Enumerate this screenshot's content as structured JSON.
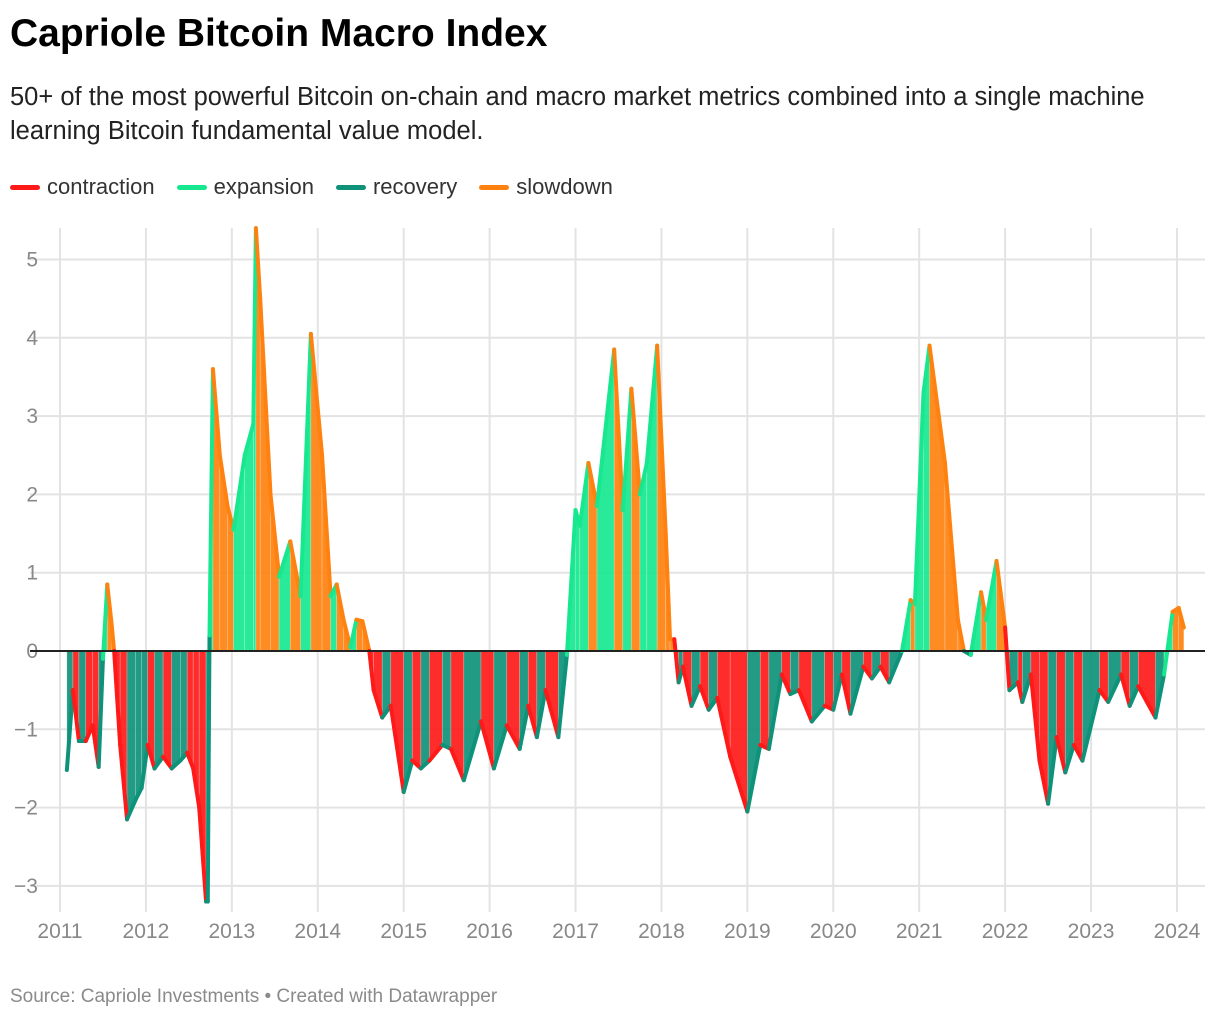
{
  "header": {
    "title": "Capriole Bitcoin Macro Index",
    "subtitle": "50+ of the most powerful Bitcoin on-chain and macro market metrics combined into a single machine learning Bitcoin fundamental value model."
  },
  "footer": {
    "source": "Source: Capriole Investments • Created with Datawrapper"
  },
  "chart_data": {
    "type": "area",
    "title": "Capriole Bitcoin Macro Index",
    "xlabel": "",
    "ylabel": "",
    "xlim": [
      2011,
      2024.3
    ],
    "ylim": [
      -3.25,
      5.4
    ],
    "grid": true,
    "legend_placement": "top-left",
    "x_ticks": [
      "2011",
      "2012",
      "2013",
      "2014",
      "2015",
      "2016",
      "2017",
      "2018",
      "2019",
      "2020",
      "2021",
      "2022",
      "2023",
      "2024"
    ],
    "y_ticks": [
      "−3",
      "−2",
      "−1",
      "0",
      "1",
      "2",
      "3",
      "4",
      "5"
    ],
    "regimes": [
      {
        "key": "c",
        "name": "contraction",
        "color": "#ff1a1a"
      },
      {
        "key": "e",
        "name": "expansion",
        "color": "#17e88f"
      },
      {
        "key": "r",
        "name": "recovery",
        "color": "#0e927a"
      },
      {
        "key": "s",
        "name": "slowdown",
        "color": "#ff8210"
      }
    ],
    "points_columns": [
      "year",
      "value",
      "regime"
    ],
    "points": [
      [
        2011.08,
        -1.52,
        "r"
      ],
      [
        2011.15,
        -0.5,
        "r"
      ],
      [
        2011.22,
        -1.15,
        "c"
      ],
      [
        2011.3,
        -1.15,
        "r"
      ],
      [
        2011.38,
        -0.95,
        "c"
      ],
      [
        2011.45,
        -1.48,
        "c"
      ],
      [
        2011.5,
        -0.1,
        "r"
      ],
      [
        2011.55,
        0.85,
        "e"
      ],
      [
        2011.6,
        0.35,
        "s"
      ],
      [
        2011.63,
        0.0,
        "s"
      ],
      [
        2011.7,
        -1.2,
        "c"
      ],
      [
        2011.78,
        -2.15,
        "c"
      ],
      [
        2011.88,
        -1.9,
        "r"
      ],
      [
        2011.95,
        -1.75,
        "r"
      ],
      [
        2012.02,
        -1.2,
        "r"
      ],
      [
        2012.1,
        -1.5,
        "c"
      ],
      [
        2012.2,
        -1.35,
        "r"
      ],
      [
        2012.3,
        -1.5,
        "c"
      ],
      [
        2012.4,
        -1.4,
        "r"
      ],
      [
        2012.48,
        -1.3,
        "r"
      ],
      [
        2012.55,
        -1.5,
        "c"
      ],
      [
        2012.62,
        -2.0,
        "c"
      ],
      [
        2012.7,
        -3.2,
        "c"
      ],
      [
        2012.72,
        -3.2,
        "r"
      ],
      [
        2012.74,
        0.2,
        "r"
      ],
      [
        2012.78,
        3.6,
        "e"
      ],
      [
        2012.86,
        2.5,
        "s"
      ],
      [
        2012.95,
        1.85,
        "s"
      ],
      [
        2013.02,
        1.55,
        "s"
      ],
      [
        2013.15,
        2.5,
        "e"
      ],
      [
        2013.25,
        2.9,
        "e"
      ],
      [
        2013.28,
        5.4,
        "e"
      ],
      [
        2013.33,
        4.5,
        "s"
      ],
      [
        2013.45,
        2.0,
        "s"
      ],
      [
        2013.55,
        0.95,
        "s"
      ],
      [
        2013.68,
        1.4,
        "e"
      ],
      [
        2013.8,
        0.7,
        "s"
      ],
      [
        2013.92,
        4.05,
        "e"
      ],
      [
        2014.05,
        2.5,
        "s"
      ],
      [
        2014.15,
        0.7,
        "s"
      ],
      [
        2014.22,
        0.85,
        "e"
      ],
      [
        2014.3,
        0.4,
        "s"
      ],
      [
        2014.38,
        0.05,
        "s"
      ],
      [
        2014.45,
        0.4,
        "e"
      ],
      [
        2014.52,
        0.38,
        "s"
      ],
      [
        2014.6,
        0.0,
        "s"
      ],
      [
        2014.65,
        -0.5,
        "c"
      ],
      [
        2014.75,
        -0.85,
        "c"
      ],
      [
        2014.85,
        -0.7,
        "r"
      ],
      [
        2015.0,
        -1.8,
        "c"
      ],
      [
        2015.1,
        -1.4,
        "r"
      ],
      [
        2015.2,
        -1.5,
        "c"
      ],
      [
        2015.3,
        -1.4,
        "r"
      ],
      [
        2015.45,
        -1.2,
        "c"
      ],
      [
        2015.55,
        -1.25,
        "r"
      ],
      [
        2015.7,
        -1.65,
        "c"
      ],
      [
        2015.9,
        -0.9,
        "r"
      ],
      [
        2016.05,
        -1.5,
        "c"
      ],
      [
        2016.2,
        -0.95,
        "r"
      ],
      [
        2016.35,
        -1.25,
        "c"
      ],
      [
        2016.45,
        -0.7,
        "r"
      ],
      [
        2016.55,
        -1.1,
        "c"
      ],
      [
        2016.65,
        -0.5,
        "r"
      ],
      [
        2016.8,
        -1.1,
        "c"
      ],
      [
        2016.9,
        -0.05,
        "r"
      ],
      [
        2017.0,
        1.8,
        "e"
      ],
      [
        2017.05,
        1.6,
        "e"
      ],
      [
        2017.15,
        2.4,
        "e"
      ],
      [
        2017.25,
        1.85,
        "s"
      ],
      [
        2017.45,
        3.85,
        "e"
      ],
      [
        2017.55,
        1.8,
        "s"
      ],
      [
        2017.65,
        3.35,
        "e"
      ],
      [
        2017.75,
        2.0,
        "s"
      ],
      [
        2017.83,
        2.4,
        "e"
      ],
      [
        2017.95,
        3.9,
        "e"
      ],
      [
        2018.05,
        1.5,
        "s"
      ],
      [
        2018.1,
        0.15,
        "s"
      ],
      [
        2018.15,
        0.15,
        "s"
      ],
      [
        2018.2,
        -0.4,
        "c"
      ],
      [
        2018.25,
        -0.2,
        "r"
      ],
      [
        2018.35,
        -0.7,
        "c"
      ],
      [
        2018.45,
        -0.45,
        "r"
      ],
      [
        2018.55,
        -0.75,
        "c"
      ],
      [
        2018.65,
        -0.6,
        "r"
      ],
      [
        2018.8,
        -1.35,
        "c"
      ],
      [
        2019.0,
        -2.05,
        "c"
      ],
      [
        2019.15,
        -1.2,
        "r"
      ],
      [
        2019.25,
        -1.25,
        "c"
      ],
      [
        2019.4,
        -0.3,
        "r"
      ],
      [
        2019.5,
        -0.55,
        "c"
      ],
      [
        2019.6,
        -0.5,
        "r"
      ],
      [
        2019.75,
        -0.9,
        "c"
      ],
      [
        2019.9,
        -0.7,
        "r"
      ],
      [
        2020.0,
        -0.75,
        "c"
      ],
      [
        2020.1,
        -0.3,
        "r"
      ],
      [
        2020.2,
        -0.8,
        "c"
      ],
      [
        2020.35,
        -0.2,
        "r"
      ],
      [
        2020.45,
        -0.35,
        "c"
      ],
      [
        2020.55,
        -0.2,
        "r"
      ],
      [
        2020.65,
        -0.4,
        "c"
      ],
      [
        2020.8,
        0.0,
        "r"
      ],
      [
        2020.9,
        0.65,
        "e"
      ],
      [
        2020.95,
        0.6,
        "s"
      ],
      [
        2021.05,
        3.3,
        "e"
      ],
      [
        2021.12,
        3.9,
        "e"
      ],
      [
        2021.3,
        2.4,
        "s"
      ],
      [
        2021.45,
        0.4,
        "s"
      ],
      [
        2021.52,
        0.0,
        "s"
      ],
      [
        2021.6,
        -0.05,
        "r"
      ],
      [
        2021.72,
        0.75,
        "e"
      ],
      [
        2021.78,
        0.4,
        "s"
      ],
      [
        2021.9,
        1.15,
        "e"
      ],
      [
        2022.0,
        0.3,
        "s"
      ],
      [
        2022.05,
        -0.5,
        "c"
      ],
      [
        2022.15,
        -0.4,
        "r"
      ],
      [
        2022.2,
        -0.65,
        "c"
      ],
      [
        2022.3,
        -0.3,
        "r"
      ],
      [
        2022.4,
        -1.4,
        "c"
      ],
      [
        2022.5,
        -1.95,
        "c"
      ],
      [
        2022.6,
        -1.1,
        "r"
      ],
      [
        2022.7,
        -1.55,
        "c"
      ],
      [
        2022.8,
        -1.2,
        "r"
      ],
      [
        2022.9,
        -1.4,
        "c"
      ],
      [
        2023.1,
        -0.5,
        "r"
      ],
      [
        2023.2,
        -0.65,
        "c"
      ],
      [
        2023.35,
        -0.3,
        "r"
      ],
      [
        2023.45,
        -0.7,
        "c"
      ],
      [
        2023.55,
        -0.45,
        "r"
      ],
      [
        2023.75,
        -0.85,
        "c"
      ],
      [
        2023.85,
        -0.3,
        "r"
      ],
      [
        2023.95,
        0.5,
        "e"
      ],
      [
        2024.02,
        0.55,
        "s"
      ],
      [
        2024.08,
        0.3,
        "s"
      ]
    ]
  }
}
